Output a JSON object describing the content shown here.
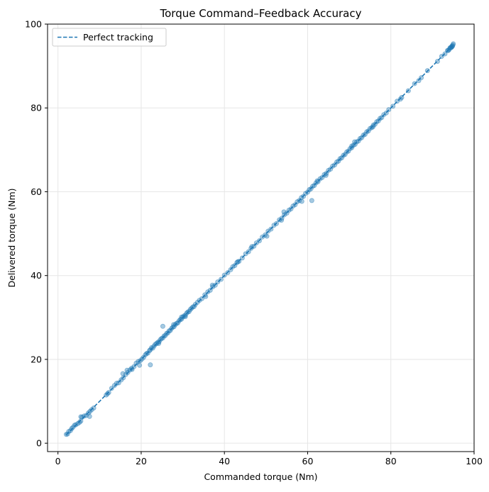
{
  "chart_data": {
    "type": "scatter",
    "title": "Torque Command–Feedback Accuracy",
    "xlabel": "Commanded torque (Nm)",
    "ylabel": "Delivered torque (Nm)",
    "xlim": [
      -2.5,
      100
    ],
    "ylim": [
      -2,
      100
    ],
    "xticks": [
      0,
      20,
      40,
      60,
      80,
      100
    ],
    "yticks": [
      0,
      20,
      40,
      60,
      80,
      100
    ],
    "grid": true,
    "legend": {
      "position": "top-left",
      "entries": [
        "Perfect tracking"
      ]
    },
    "colors": {
      "points": "#1f77b4",
      "line": "#1f77b4",
      "grid": "#e6e6e6"
    },
    "reference_line": {
      "name": "Perfect tracking",
      "style": "dashed",
      "x": [
        2,
        95
      ],
      "y": [
        2,
        95
      ]
    },
    "series": [
      {
        "x": [
          2.0,
          2.3,
          2.6,
          3.0,
          3.3,
          3.6,
          4.0,
          4.3,
          4.8,
          5.2,
          5.5,
          5.8,
          6.3,
          6.8,
          7.3,
          7.7,
          8.1,
          8.6,
          11.6,
          12.2,
          12.9,
          13.6,
          14.1,
          14.6,
          15.2,
          15.7,
          16.3,
          16.8,
          17.3,
          17.8,
          18.3,
          18.8,
          19.3,
          19.8,
          20.2,
          20.6,
          21.0,
          21.3,
          21.6,
          22.0,
          22.2,
          22.5,
          22.8,
          23.1,
          23.4,
          23.7,
          24.0,
          24.3,
          24.6,
          24.9,
          25.2,
          25.5,
          25.8,
          26.1,
          26.4,
          26.7,
          27.0,
          27.3,
          27.6,
          27.9,
          28.2,
          28.5,
          28.8,
          29.1,
          29.4,
          29.7,
          30.0,
          30.3,
          30.6,
          30.9,
          31.2,
          31.5,
          31.8,
          32.1,
          32.4,
          32.7,
          33.0,
          33.5,
          34.0,
          34.6,
          35.3,
          36.0,
          36.6,
          37.2,
          37.8,
          38.4,
          39.2,
          40.0,
          40.8,
          41.5,
          42.0,
          42.5,
          43.0,
          43.5,
          44.3,
          45.1,
          45.8,
          46.4,
          47.1,
          47.7,
          48.4,
          49.1,
          49.8,
          50.5,
          51.2,
          51.9,
          52.5,
          53.2,
          53.8,
          54.4,
          55.0,
          55.5,
          56.0,
          56.5,
          57.0,
          57.5,
          58.0,
          58.5,
          59.0,
          59.5,
          60.0,
          60.4,
          60.8,
          61.2,
          61.6,
          62.0,
          62.5,
          63.0,
          63.5,
          64.0,
          64.5,
          65.0,
          65.5,
          66.0,
          66.5,
          67.0,
          67.4,
          67.8,
          68.2,
          68.6,
          69.0,
          69.4,
          69.8,
          70.2,
          70.6,
          71.0,
          71.4,
          71.8,
          72.2,
          72.6,
          73.0,
          73.4,
          73.8,
          74.2,
          74.6,
          75.0,
          75.4,
          75.8,
          76.2,
          76.6,
          77.0,
          77.4,
          77.8,
          78.3,
          78.9,
          79.5,
          80.5,
          81.5,
          82.6,
          84.2,
          85.7,
          87.3,
          88.8,
          91.2,
          92.2,
          93.0,
          93.6,
          94.0,
          94.3,
          94.5,
          94.7,
          94.8,
          94.9,
          95.0,
          94.6,
          94.2,
          93.8,
          5.5,
          7.6,
          11.9,
          15.6,
          16.6,
          19.6,
          22.2,
          24.2,
          25.2,
          35.5,
          50.2,
          54.3,
          61.0,
          64.4,
          70.6,
          71.3,
          58.6,
          43.2,
          46.6,
          27.8,
          30.6,
          37.1,
          53.7,
          62.3,
          75.7,
          82.3,
          86.7,
          17.7,
          29.7
        ],
        "y": [
          2.1,
          2.2,
          2.8,
          3.0,
          3.5,
          3.8,
          4.3,
          4.4,
          4.7,
          5.0,
          5.3,
          6.2,
          6.5,
          6.6,
          7.2,
          7.6,
          8.0,
          8.4,
          11.5,
          12.1,
          13.1,
          13.8,
          14.3,
          14.4,
          15.1,
          15.6,
          16.4,
          16.9,
          17.5,
          17.6,
          18.3,
          19.1,
          19.5,
          19.7,
          20.1,
          20.5,
          21.1,
          21.4,
          21.5,
          22.1,
          22.3,
          22.8,
          22.7,
          23.2,
          23.6,
          23.8,
          24.1,
          24.2,
          24.7,
          25.0,
          25.1,
          25.6,
          25.7,
          26.2,
          26.3,
          26.8,
          26.9,
          27.4,
          27.7,
          27.8,
          28.3,
          28.6,
          28.7,
          29.2,
          29.5,
          29.6,
          30.1,
          30.4,
          30.5,
          31.0,
          31.3,
          31.4,
          31.9,
          32.2,
          32.5,
          32.6,
          33.1,
          33.6,
          34.1,
          34.5,
          35.4,
          36.1,
          36.5,
          37.3,
          37.7,
          38.5,
          39.1,
          40.1,
          40.7,
          41.4,
          42.1,
          42.4,
          43.1,
          43.4,
          44.2,
          45.2,
          45.7,
          46.5,
          47.0,
          47.8,
          48.3,
          49.2,
          49.7,
          50.6,
          51.1,
          52.0,
          52.4,
          53.3,
          53.7,
          54.5,
          54.9,
          55.6,
          55.9,
          56.6,
          56.9,
          57.6,
          57.9,
          58.6,
          58.9,
          59.6,
          59.9,
          60.5,
          60.7,
          61.3,
          61.5,
          62.1,
          62.4,
          63.1,
          63.4,
          64.1,
          64.4,
          65.1,
          65.4,
          66.1,
          66.4,
          67.1,
          67.3,
          67.9,
          68.1,
          68.7,
          68.9,
          69.5,
          69.7,
          70.3,
          70.5,
          71.1,
          71.3,
          71.9,
          72.1,
          72.7,
          72.9,
          73.5,
          73.7,
          74.3,
          74.5,
          75.1,
          75.3,
          75.9,
          76.1,
          76.7,
          76.9,
          77.5,
          77.7,
          78.4,
          78.8,
          79.6,
          80.4,
          81.6,
          82.5,
          84.1,
          85.8,
          87.2,
          88.9,
          91.1,
          92.3,
          92.9,
          93.7,
          93.9,
          94.4,
          94.4,
          94.8,
          94.7,
          95.0,
          95.3,
          94.5,
          94.3,
          93.7,
          6.3,
          6.4,
          11.8,
          16.6,
          17.4,
          18.6,
          18.7,
          23.8,
          27.9,
          35.0,
          49.4,
          55.2,
          57.9,
          63.9,
          70.9,
          71.9,
          57.7,
          43.3,
          46.9,
          28.3,
          30.2,
          37.7,
          53.2,
          62.6,
          75.5,
          82.1,
          86.5,
          17.9,
          30.1
        ]
      }
    ]
  }
}
